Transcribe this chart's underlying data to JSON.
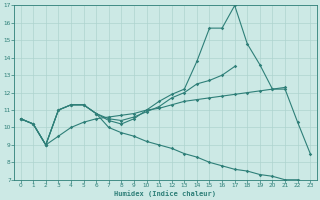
{
  "xlabel": "Humidex (Indice chaleur)",
  "x_values": [
    0,
    1,
    2,
    3,
    4,
    5,
    6,
    7,
    8,
    9,
    10,
    11,
    12,
    13,
    14,
    15,
    16,
    17,
    18,
    19,
    20,
    21,
    22,
    23
  ],
  "line_main": [
    10.5,
    10.2,
    9.0,
    11.0,
    11.3,
    11.3,
    10.8,
    10.4,
    10.2,
    10.5,
    11.0,
    11.5,
    11.9,
    12.2,
    13.8,
    15.7,
    15.7,
    17.0,
    14.8,
    13.6,
    12.2,
    12.2,
    10.3,
    8.5
  ],
  "line_up": [
    10.5,
    10.2,
    9.0,
    9.5,
    10.0,
    10.3,
    10.5,
    10.6,
    10.7,
    10.8,
    11.0,
    11.1,
    11.3,
    11.5,
    11.6,
    11.7,
    11.8,
    11.9,
    12.0,
    12.1,
    12.2,
    12.3,
    null,
    null
  ],
  "line_down": [
    10.5,
    10.2,
    9.0,
    11.0,
    11.3,
    11.3,
    10.8,
    10.0,
    9.7,
    9.5,
    9.2,
    9.0,
    8.8,
    8.5,
    8.3,
    8.0,
    7.8,
    7.6,
    7.5,
    7.3,
    7.2,
    7.0,
    7.0,
    6.8
  ],
  "line_mid": [
    10.5,
    10.2,
    9.0,
    11.0,
    11.3,
    11.3,
    10.8,
    10.5,
    10.4,
    10.6,
    10.9,
    11.2,
    11.7,
    12.0,
    12.5,
    12.7,
    13.0,
    13.5,
    null,
    null,
    null,
    null,
    null,
    null
  ],
  "bg_color": "#cce9e5",
  "line_color": "#2e7f78",
  "grid_color": "#aed4cf",
  "ylim": [
    7,
    17
  ],
  "yticks": [
    7,
    8,
    9,
    10,
    11,
    12,
    13,
    14,
    15,
    16,
    17
  ],
  "xticks": [
    0,
    1,
    2,
    3,
    4,
    5,
    6,
    7,
    8,
    9,
    10,
    11,
    12,
    13,
    14,
    15,
    16,
    17,
    18,
    19,
    20,
    21,
    22,
    23
  ]
}
